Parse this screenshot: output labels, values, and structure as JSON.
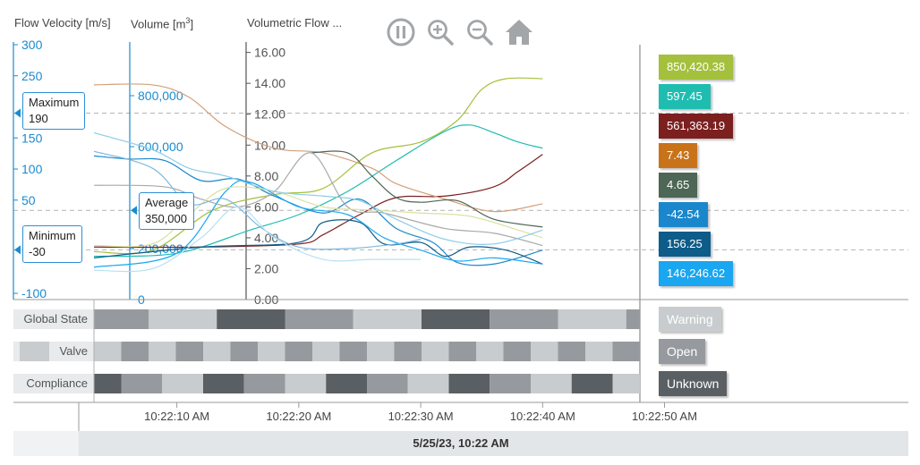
{
  "toolbar": {
    "icons": [
      "pause-icon",
      "zoom-in-icon",
      "zoom-out-icon",
      "home-icon"
    ]
  },
  "axes": {
    "velocity": {
      "title": "Flow Velocity [m/s]",
      "min": -110,
      "max": 300,
      "ticks": [
        300,
        250,
        150,
        100,
        50,
        -100
      ],
      "color": "#1a8bd0"
    },
    "volume": {
      "title_main": "Volume [m",
      "title_sup": "3",
      "title_end": "]",
      "min": 0,
      "max": 1000000,
      "ticks": [
        800000,
        600000,
        200000,
        0
      ],
      "tick_labels": [
        "800,000",
        "600,000",
        "200,000",
        "0"
      ],
      "color": "#1a8bd0"
    },
    "flow": {
      "title": "Volumetric Flow ...",
      "min": 0,
      "max": 16.5,
      "ticks": [
        16,
        14,
        12,
        10,
        8,
        6,
        4,
        2,
        0
      ],
      "tick_labels": [
        "16.00",
        "14.00",
        "12.00",
        "10.00",
        "8.00",
        "6.00",
        "4.00",
        "2.00",
        "0.00"
      ],
      "color": "#555555"
    }
  },
  "callouts": {
    "maximum": {
      "label": "Maximum",
      "value": "190",
      "velocity": 190
    },
    "average": {
      "label": "Average",
      "value": "350,000",
      "volume": 350000
    },
    "minimum": {
      "label": "Minimum",
      "value": "-30",
      "velocity": -30
    }
  },
  "current_values": [
    {
      "value": "850,420.38",
      "color": "#a4c03c"
    },
    {
      "value": "597.45",
      "color": "#1fbcb0"
    },
    {
      "value": "561,363.19",
      "color": "#7b1f1f"
    },
    {
      "value": "7.43",
      "color": "#c8731a"
    },
    {
      "value": "4.65",
      "color": "#4d6655"
    },
    {
      "value": "-42.54",
      "color": "#1a87cc"
    },
    {
      "value": "156.25",
      "color": "#0d5c8a"
    },
    {
      "value": "146,246.62",
      "color": "#1aa6f0"
    }
  ],
  "chart_data": {
    "type": "line",
    "x_unit": "seconds after 10:22:00 AM",
    "x_range": [
      3.2,
      70
    ],
    "x_ticks": [
      "10:22:10 AM",
      "10:22:20 AM",
      "10:22:30 AM",
      "10:22:40 AM",
      "10:22:50 AM"
    ],
    "x_tick_values": [
      10,
      20,
      30,
      40,
      50
    ],
    "now": 40,
    "y_axis": "Volumetric Flow",
    "series": [
      {
        "color": "#a4c03c",
        "points": [
          [
            3.2,
            3.1
          ],
          [
            8,
            3.2
          ],
          [
            13,
            5.8
          ],
          [
            18,
            6.8
          ],
          [
            22,
            7.2
          ],
          [
            26,
            9.5
          ],
          [
            30,
            10.2
          ],
          [
            33,
            11.6
          ],
          [
            35,
            13.6
          ],
          [
            37,
            14.3
          ],
          [
            40,
            14.3
          ]
        ]
      },
      {
        "color": "#1fbcb0",
        "points": [
          [
            3.2,
            2.8
          ],
          [
            10,
            3.0
          ],
          [
            16,
            4.5
          ],
          [
            20,
            5.5
          ],
          [
            24,
            7.0
          ],
          [
            28,
            9.0
          ],
          [
            32,
            10.9
          ],
          [
            34,
            11.3
          ],
          [
            36,
            10.8
          ],
          [
            38,
            10.2
          ],
          [
            40,
            9.8
          ]
        ]
      },
      {
        "color": "#7b1f1f",
        "points": [
          [
            3.2,
            3.4
          ],
          [
            12,
            3.4
          ],
          [
            20,
            3.6
          ],
          [
            22,
            4.2
          ],
          [
            25,
            5.5
          ],
          [
            28,
            6.6
          ],
          [
            32,
            6.7
          ],
          [
            36,
            7.3
          ],
          [
            38,
            8.3
          ],
          [
            40,
            9.4
          ]
        ]
      },
      {
        "color": "#d2a07a",
        "points": [
          [
            3.2,
            13.9
          ],
          [
            8,
            13.9
          ],
          [
            11,
            13.1
          ],
          [
            14,
            11.2
          ],
          [
            18,
            9.8
          ],
          [
            22,
            9.5
          ],
          [
            26,
            8.5
          ],
          [
            28,
            7.5
          ],
          [
            32,
            6.5
          ],
          [
            36,
            5.7
          ],
          [
            40,
            6.2
          ]
        ]
      },
      {
        "color": "#4d6655",
        "points": [
          [
            21,
            9.5
          ],
          [
            24,
            9.5
          ],
          [
            26,
            8.0
          ],
          [
            28,
            6.6
          ],
          [
            30,
            6.3
          ],
          [
            33,
            6.4
          ],
          [
            36,
            5.2
          ],
          [
            40,
            4.7
          ]
        ]
      },
      {
        "color": "#1a87cc",
        "points": [
          [
            3.2,
            9.3
          ],
          [
            6,
            9.1
          ],
          [
            9,
            9.0
          ],
          [
            12,
            7.7
          ],
          [
            15,
            7.8
          ],
          [
            18,
            6.7
          ],
          [
            22,
            5.6
          ],
          [
            25,
            6.5
          ],
          [
            28,
            4.6
          ],
          [
            31,
            3.7
          ],
          [
            33,
            2.4
          ],
          [
            36,
            2.3
          ],
          [
            40,
            3.2
          ]
        ]
      },
      {
        "color": "#0d5c8a",
        "points": [
          [
            3.2,
            2.7
          ],
          [
            12,
            3.4
          ],
          [
            20,
            3.7
          ],
          [
            22,
            5.0
          ],
          [
            25,
            5.0
          ],
          [
            27,
            3.6
          ],
          [
            30,
            3.7
          ],
          [
            32,
            2.8
          ],
          [
            34,
            3.4
          ],
          [
            37,
            3.2
          ],
          [
            40,
            2.3
          ]
        ]
      },
      {
        "color": "#1aa6f0",
        "points": [
          [
            3.2,
            2.1
          ],
          [
            10,
            3.0
          ],
          [
            14,
            7.0
          ],
          [
            16,
            7.6
          ],
          [
            20,
            6.0
          ],
          [
            24,
            5.5
          ],
          [
            27,
            4.0
          ],
          [
            30,
            3.2
          ],
          [
            33,
            2.5
          ],
          [
            36,
            2.7
          ],
          [
            40,
            2.3
          ]
        ]
      },
      {
        "color": "#a9a9a9",
        "points": [
          [
            3.2,
            7.4
          ],
          [
            9,
            7.3
          ],
          [
            12,
            6.5
          ],
          [
            15,
            6.0
          ],
          [
            18,
            7.0
          ],
          [
            21,
            9.5
          ],
          [
            24,
            6.0
          ],
          [
            27,
            5.6
          ],
          [
            32,
            4.6
          ],
          [
            36,
            4.3
          ],
          [
            40,
            3.5
          ]
        ]
      },
      {
        "color": "#d8e2a0",
        "points": [
          [
            3.2,
            3.5
          ],
          [
            8,
            3.6
          ],
          [
            11,
            5.5
          ],
          [
            14,
            7.2
          ],
          [
            18,
            7.0
          ],
          [
            22,
            6.0
          ],
          [
            26,
            5.8
          ],
          [
            30,
            5.6
          ],
          [
            34,
            5.4
          ],
          [
            38,
            4.5
          ],
          [
            40,
            4.0
          ]
        ]
      },
      {
        "color": "#8ecbe8",
        "points": [
          [
            3.2,
            10.8
          ],
          [
            8,
            9.7
          ],
          [
            11,
            8.5
          ],
          [
            14,
            8.0
          ],
          [
            18,
            7.0
          ],
          [
            22,
            6.7
          ],
          [
            25,
            6.4
          ],
          [
            28,
            5.2
          ],
          [
            32,
            3.9
          ],
          [
            36,
            3.6
          ],
          [
            40,
            4.5
          ]
        ]
      },
      {
        "color": "#7fb8dc",
        "points": [
          [
            3.2,
            9.6
          ],
          [
            8,
            8.5
          ],
          [
            11,
            6.2
          ],
          [
            14,
            6.5
          ],
          [
            17,
            4.6
          ],
          [
            20,
            3.4
          ],
          [
            24,
            3.3
          ],
          [
            28,
            3.6
          ],
          [
            30,
            3.9
          ]
        ]
      },
      {
        "color": "#b7e0f2",
        "points": [
          [
            3.2,
            1.9
          ],
          [
            8,
            2.0
          ],
          [
            12,
            4.0
          ],
          [
            15,
            6.0
          ],
          [
            18,
            4.0
          ],
          [
            22,
            2.6
          ],
          [
            26,
            2.6
          ],
          [
            30,
            2.6
          ]
        ]
      }
    ]
  },
  "states": {
    "rows": [
      {
        "label": "Global State",
        "current": "Warning",
        "current_color": "#c8ccce",
        "segments": [
          [
            0,
            4,
            "#969a9e"
          ],
          [
            4,
            9,
            "#c8ccce"
          ],
          [
            9,
            14,
            "#5a5f63"
          ],
          [
            14,
            19,
            "#969a9e"
          ],
          [
            19,
            24,
            "#c8ccce"
          ],
          [
            24,
            29,
            "#5a5f63"
          ],
          [
            29,
            34,
            "#969a9e"
          ],
          [
            34,
            39,
            "#c8ccce"
          ],
          [
            39,
            40,
            "#969a9e"
          ]
        ]
      },
      {
        "label": "Valve",
        "current": "Open",
        "current_color": "#969a9e",
        "segments": [
          [
            0,
            2,
            "#c8ccce"
          ],
          [
            2,
            4,
            "#969a9e"
          ],
          [
            4,
            6,
            "#c8ccce"
          ],
          [
            6,
            8,
            "#969a9e"
          ],
          [
            8,
            10,
            "#c8ccce"
          ],
          [
            10,
            12,
            "#969a9e"
          ],
          [
            12,
            14,
            "#c8ccce"
          ],
          [
            14,
            16,
            "#969a9e"
          ],
          [
            16,
            18,
            "#c8ccce"
          ],
          [
            18,
            20,
            "#969a9e"
          ],
          [
            20,
            22,
            "#c8ccce"
          ],
          [
            22,
            24,
            "#969a9e"
          ],
          [
            24,
            26,
            "#c8ccce"
          ],
          [
            26,
            28,
            "#969a9e"
          ],
          [
            28,
            30,
            "#c8ccce"
          ],
          [
            30,
            32,
            "#969a9e"
          ],
          [
            32,
            34,
            "#c8ccce"
          ],
          [
            34,
            36,
            "#969a9e"
          ],
          [
            36,
            38,
            "#c8ccce"
          ],
          [
            38,
            40,
            "#969a9e"
          ]
        ]
      },
      {
        "label": "Compliance",
        "current": "Unknown",
        "current_color": "#5a5f63",
        "segments": [
          [
            0,
            2,
            "#5a5f63"
          ],
          [
            2,
            5,
            "#969a9e"
          ],
          [
            5,
            8,
            "#c8ccce"
          ],
          [
            8,
            11,
            "#5a5f63"
          ],
          [
            11,
            14,
            "#969a9e"
          ],
          [
            14,
            17,
            "#c8ccce"
          ],
          [
            17,
            20,
            "#5a5f63"
          ],
          [
            20,
            23,
            "#969a9e"
          ],
          [
            23,
            26,
            "#c8ccce"
          ],
          [
            26,
            29,
            "#5a5f63"
          ],
          [
            29,
            32,
            "#969a9e"
          ],
          [
            32,
            35,
            "#c8ccce"
          ],
          [
            35,
            38,
            "#5a5f63"
          ],
          [
            38,
            40,
            "#c8ccce"
          ]
        ]
      }
    ]
  },
  "footer": {
    "date": "5/25/23, 10:22 AM"
  }
}
